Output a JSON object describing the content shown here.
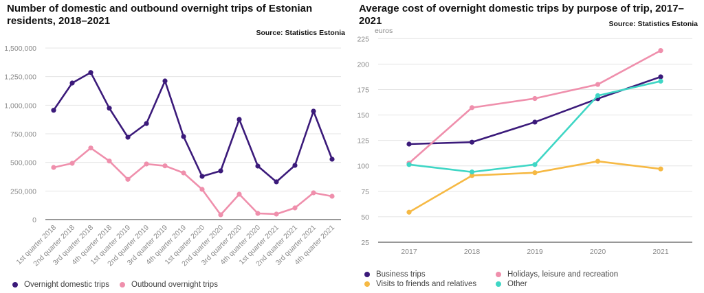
{
  "chart_data": [
    {
      "type": "line",
      "title": "Number of domestic and outbound overnight trips of Estonian residents, 2018–2021",
      "source": "Source: Statistics Estonia",
      "xlabel": "",
      "ylabel": "",
      "ylim": [
        0,
        1500000
      ],
      "yticks": [
        0,
        250000,
        500000,
        750000,
        1000000,
        1250000,
        1500000
      ],
      "ytick_labels": [
        "0",
        "250,000",
        "500,000",
        "750,000",
        "1,000,000",
        "1,250,000",
        "1,500,000"
      ],
      "grid": true,
      "legend_position": "bottom-left",
      "categories": [
        "1st quarter 2018",
        "2nd quarter 2018",
        "3rd quarter 2018",
        "4th quarter 2018",
        "1st quarter 2019",
        "2nd quarter 2019",
        "3rd quarter 2019",
        "4th quarter 2019",
        "1st quarter 2020",
        "2nd quarter 2020",
        "3rd quarter 2020",
        "4th quarter 2020",
        "1st quarter 2021",
        "2nd quarter 2021",
        "3rd quarter 2021",
        "4th quarter 2021"
      ],
      "series": [
        {
          "name": "Overnight domestic trips",
          "color": "#3b1a7a",
          "values": [
            956000,
            1194000,
            1286000,
            974000,
            720000,
            840000,
            1212000,
            726000,
            378000,
            426000,
            876000,
            468000,
            330000,
            474000,
            948000,
            528000
          ]
        },
        {
          "name": "Outbound overnight trips",
          "color": "#ef8fac",
          "values": [
            456000,
            492000,
            626000,
            512000,
            352000,
            486000,
            470000,
            408000,
            264000,
            42000,
            222000,
            54000,
            48000,
            102000,
            234000,
            204000
          ]
        }
      ]
    },
    {
      "type": "line",
      "title": "Average cost of overnight domestic trips by purpose of trip, 2017–2021",
      "source": "Source: Statistics Estonia",
      "xlabel": "",
      "ylabel": "euros",
      "ylim": [
        25,
        225
      ],
      "yticks": [
        25,
        50,
        75,
        100,
        125,
        150,
        175,
        200,
        225
      ],
      "ytick_labels": [
        "25",
        "50",
        "75",
        "100",
        "125",
        "150",
        "175",
        "200",
        "225"
      ],
      "grid": true,
      "legend_position": "bottom-left",
      "categories": [
        "2017",
        "2018",
        "2019",
        "2020",
        "2021"
      ],
      "series": [
        {
          "name": "Business trips",
          "color": "#3b1a7a",
          "values": [
            121.4,
            123.3,
            143.0,
            166.0,
            187.5
          ]
        },
        {
          "name": "Holidays, leisure and recreation",
          "color": "#ef8fac",
          "values": [
            102.7,
            157.2,
            166.2,
            180.0,
            213.3
          ]
        },
        {
          "name": "Visits to friends and relatives",
          "color": "#f6b944",
          "values": [
            54.5,
            90.5,
            93.3,
            104.5,
            97.0
          ]
        },
        {
          "name": "Other",
          "color": "#3fd6c5",
          "values": [
            101.3,
            94.0,
            101.3,
            169.0,
            183.2
          ]
        }
      ]
    }
  ]
}
